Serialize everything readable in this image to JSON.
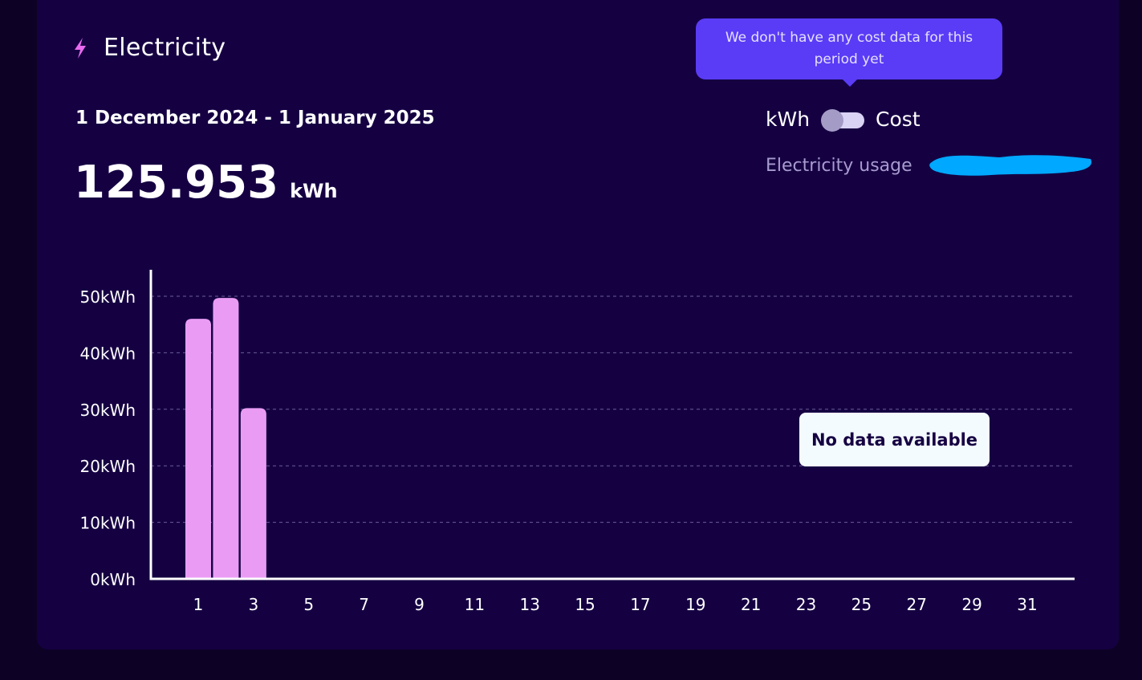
{
  "header": {
    "title": "Electricity",
    "icon": "lightning-bolt-icon",
    "icon_color": "#e86af0"
  },
  "period": {
    "date_range": "1 December 2024 - 1 January 2025",
    "total_value": "125.953",
    "total_unit": "kWh"
  },
  "tooltip": {
    "text": "We don't have any cost data for this period yet"
  },
  "toggle": {
    "left_label": "kWh",
    "right_label": "Cost",
    "selected": "kWh"
  },
  "usage": {
    "label": "Electricity usage"
  },
  "no_data_message": "No data available",
  "colors": {
    "background": "#0d0225",
    "card": "#150042",
    "bar": "#ea9cf5",
    "tooltip": "#5a3cf6",
    "axis": "#ffffff"
  },
  "chart_data": {
    "type": "bar",
    "categories": [
      1,
      2,
      3
    ],
    "values": [
      46,
      49.7,
      30.2
    ],
    "x_tick_labels": [
      "1",
      "3",
      "5",
      "7",
      "9",
      "11",
      "13",
      "15",
      "17",
      "19",
      "21",
      "23",
      "25",
      "27",
      "29",
      "31"
    ],
    "y_tick_labels": [
      "0kWh",
      "10kWh",
      "20kWh",
      "30kWh",
      "40kWh",
      "50kWh"
    ],
    "y_ticks": [
      0,
      10,
      20,
      30,
      40,
      50
    ],
    "xlim": [
      1,
      31
    ],
    "ylim": [
      0,
      50
    ],
    "grid": true,
    "xlabel": "",
    "ylabel": ""
  }
}
